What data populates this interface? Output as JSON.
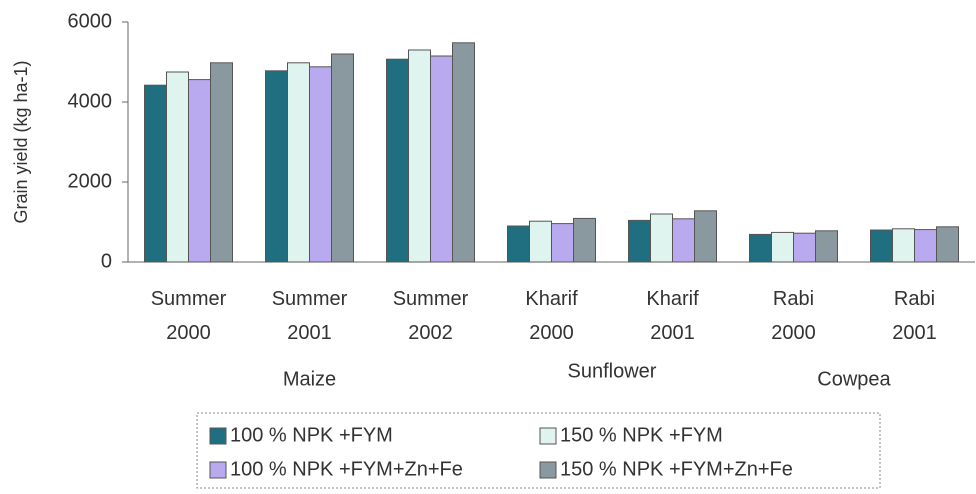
{
  "chart_data": {
    "type": "bar",
    "y_label": "Grain yield  (kg ha-1)",
    "categories": [
      "Summer 2000",
      "Summer 2001",
      "Summer 2002",
      "Kharif 2000",
      "Kharif 2001",
      "Rabi 2000",
      "Rabi 2001"
    ],
    "group_labels": [
      "Maize",
      "Sunflower",
      "Cowpea"
    ],
    "series": [
      {
        "name": "100 % NPK +FYM",
        "color": "#1f6f80",
        "values": [
          4420,
          4780,
          5070,
          900,
          1040,
          690,
          800
        ]
      },
      {
        "name": "150 % NPK +FYM",
        "color": "#e0f4ef",
        "values": [
          4750,
          4980,
          5300,
          1020,
          1200,
          740,
          830
        ]
      },
      {
        "name": "100 % NPK +FYM+Zn+Fe",
        "color": "#b9a9ef",
        "values": [
          4560,
          4880,
          5150,
          960,
          1080,
          720,
          810
        ]
      },
      {
        "name": "150 % NPK +FYM+Zn+Fe",
        "color": "#8a98a0",
        "values": [
          4980,
          5200,
          5480,
          1090,
          1280,
          780,
          880
        ]
      }
    ],
    "ylim": [
      0,
      6000
    ],
    "yticks": [
      0,
      2000,
      4000,
      6000
    ],
    "grid": false,
    "legend": "bottom"
  }
}
